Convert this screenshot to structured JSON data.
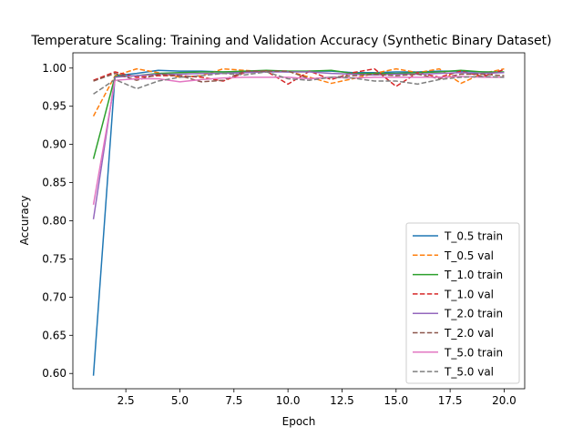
{
  "chart_data": {
    "type": "line",
    "title": "Temperature Scaling: Training and Validation Accuracy (Synthetic Binary Dataset)",
    "xlabel": "Epoch",
    "ylabel": "Accuracy",
    "xlim": [
      0.05,
      20.95
    ],
    "ylim": [
      0.58,
      1.02
    ],
    "xticks": [
      2.5,
      5.0,
      7.5,
      10.0,
      12.5,
      15.0,
      17.5,
      20.0
    ],
    "xtick_labels": [
      "2.5",
      "5.0",
      "7.5",
      "10.0",
      "12.5",
      "15.0",
      "17.5",
      "20.0"
    ],
    "yticks": [
      0.6,
      0.65,
      0.7,
      0.75,
      0.8,
      0.85,
      0.9,
      0.95,
      1.0
    ],
    "ytick_labels": [
      "0.60",
      "0.65",
      "0.70",
      "0.75",
      "0.80",
      "0.85",
      "0.90",
      "0.95",
      "1.00"
    ],
    "legend_position": "lower-right",
    "grid": false,
    "x": [
      1,
      2,
      3,
      4,
      5,
      6,
      7,
      8,
      9,
      10,
      11,
      12,
      13,
      14,
      15,
      16,
      17,
      18,
      19,
      20
    ],
    "series": [
      {
        "name": "T_0.5 train",
        "color": "#1f77b4",
        "dash": "solid",
        "values": [
          0.597,
          0.99,
          0.993,
          0.997,
          0.996,
          0.996,
          0.995,
          0.995,
          0.996,
          0.995,
          0.996,
          0.996,
          0.994,
          0.994,
          0.995,
          0.995,
          0.996,
          0.996,
          0.995,
          0.994
        ]
      },
      {
        "name": "T_0.5 val",
        "color": "#ff7f0e",
        "dash": "dashed",
        "values": [
          0.937,
          0.99,
          0.999,
          0.994,
          0.988,
          0.99,
          0.999,
          0.997,
          0.995,
          0.996,
          0.988,
          0.98,
          0.986,
          0.993,
          0.999,
          0.994,
          0.999,
          0.98,
          0.993,
          0.999
        ]
      },
      {
        "name": "T_1.0 train",
        "color": "#2ca02c",
        "dash": "solid",
        "values": [
          0.881,
          0.989,
          0.99,
          0.993,
          0.994,
          0.995,
          0.995,
          0.996,
          0.997,
          0.996,
          0.996,
          0.997,
          0.993,
          0.993,
          0.993,
          0.994,
          0.995,
          0.997,
          0.995,
          0.995
        ]
      },
      {
        "name": "T_1.0 val",
        "color": "#d62728",
        "dash": "dashed",
        "values": [
          0.984,
          0.995,
          0.988,
          0.99,
          0.99,
          0.988,
          0.983,
          0.994,
          0.996,
          0.979,
          0.996,
          0.985,
          0.994,
          0.999,
          0.976,
          0.994,
          0.988,
          0.996,
          0.989,
          0.998
        ]
      },
      {
        "name": "T_2.0 train",
        "color": "#9467bd",
        "dash": "solid",
        "values": [
          0.802,
          0.988,
          0.99,
          0.992,
          0.992,
          0.993,
          0.993,
          0.994,
          0.995,
          0.995,
          0.995,
          0.993,
          0.992,
          0.991,
          0.992,
          0.992,
          0.993,
          0.994,
          0.993,
          0.994
        ]
      },
      {
        "name": "T_2.0 val",
        "color": "#8c564b",
        "dash": "dashed",
        "values": [
          0.983,
          0.993,
          0.984,
          0.992,
          0.99,
          0.982,
          0.984,
          0.996,
          0.996,
          0.996,
          0.986,
          0.988,
          0.99,
          0.992,
          0.99,
          0.992,
          0.986,
          0.992,
          0.992,
          0.99
        ]
      },
      {
        "name": "T_5.0 train",
        "color": "#e377c2",
        "dash": "solid",
        "values": [
          0.821,
          0.984,
          0.986,
          0.986,
          0.982,
          0.985,
          0.987,
          0.988,
          0.988,
          0.988,
          0.986,
          0.988,
          0.987,
          0.988,
          0.988,
          0.988,
          0.988,
          0.989,
          0.988,
          0.988
        ]
      },
      {
        "name": "T_5.0 val",
        "color": "#7f7f7f",
        "dash": "dashed",
        "values": [
          0.966,
          0.985,
          0.973,
          0.983,
          0.988,
          0.99,
          0.993,
          0.991,
          0.995,
          0.986,
          0.984,
          0.988,
          0.987,
          0.983,
          0.983,
          0.979,
          0.985,
          0.988,
          0.989,
          0.988
        ]
      }
    ]
  }
}
